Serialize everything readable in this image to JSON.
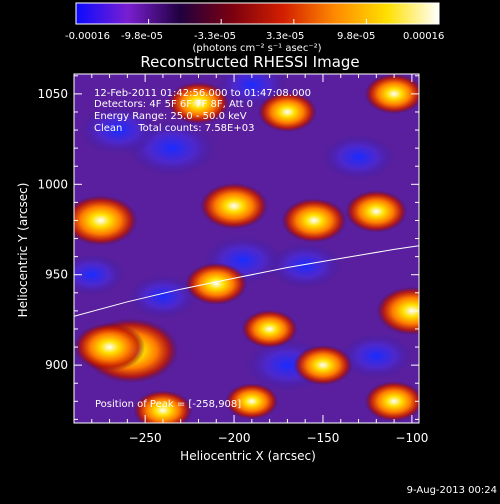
{
  "colorbar": {
    "tick_labels": [
      "-0.00016",
      "-9.8e-05",
      "-3.3e-05",
      "3.3e-05",
      "9.8e-05",
      "0.00016"
    ],
    "unit_label": "(photons cm⁻² s⁻¹ asec⁻²)",
    "range": [
      -0.00016,
      0.00016
    ],
    "colors": [
      "#0a0aff",
      "#7a1fd0",
      "#200040",
      "#7a0010",
      "#d31f00",
      "#ff8a00",
      "#ffe000",
      "#ffffff"
    ]
  },
  "chart_data": {
    "type": "heatmap",
    "title": "Reconstructed RHESSI Image",
    "xlabel": "Heliocentric X (arcsec)",
    "ylabel": "Heliocentric Y (arcsec)",
    "xlim": [
      -290,
      -96
    ],
    "ylim": [
      868,
      1061
    ],
    "x_ticks": [
      -250,
      -200,
      -150,
      -100
    ],
    "y_ticks": [
      900,
      950,
      1000,
      1050
    ],
    "x_tick_labels": [
      "−250",
      "−200",
      "−150",
      "−100"
    ],
    "y_tick_labels": [
      "900",
      "950",
      "1000",
      "1050"
    ],
    "annotations": [
      "12-Feb-2011 01:42:56.000 to 01:47:08.000",
      "Detectors: 4F 5F 6F 7F 8F, Att 0",
      "Energy Range: 25.0 - 50.0 keV",
      "Clean     Total counts: 7.58E+03"
    ],
    "peak_label": "Position of Peak = [-258,908]",
    "peak": [
      -258,
      908
    ],
    "limb_curve": [
      [
        -290,
        927
      ],
      [
        -260,
        935
      ],
      [
        -230,
        942
      ],
      [
        -200,
        948
      ],
      [
        -170,
        954
      ],
      [
        -140,
        959
      ],
      [
        -110,
        964
      ],
      [
        -96,
        966
      ]
    ],
    "hot_spots": [
      {
        "x": -258,
        "y": 908,
        "level": 1.0
      },
      {
        "x": -275,
        "y": 980,
        "level": 0.65
      },
      {
        "x": -270,
        "y": 910,
        "level": 0.6
      },
      {
        "x": -200,
        "y": 988,
        "level": 0.55
      },
      {
        "x": -100,
        "y": 930,
        "level": 0.6
      },
      {
        "x": -210,
        "y": 945,
        "level": 0.45
      },
      {
        "x": -155,
        "y": 980,
        "level": 0.5
      },
      {
        "x": -220,
        "y": 1045,
        "level": 0.45
      },
      {
        "x": -170,
        "y": 1040,
        "level": 0.4
      },
      {
        "x": -110,
        "y": 1050,
        "level": 0.4
      },
      {
        "x": -120,
        "y": 985,
        "level": 0.45
      },
      {
        "x": -150,
        "y": 900,
        "level": 0.4
      },
      {
        "x": -240,
        "y": 875,
        "level": 0.4
      },
      {
        "x": -110,
        "y": 880,
        "level": 0.4
      },
      {
        "x": -180,
        "y": 920,
        "level": 0.35
      },
      {
        "x": -190,
        "y": 880,
        "level": 0.3
      }
    ],
    "cold_spots": [
      {
        "x": -235,
        "y": 1020,
        "level": -0.7
      },
      {
        "x": -265,
        "y": 1030,
        "level": -0.5
      },
      {
        "x": -170,
        "y": 900,
        "level": -0.6
      },
      {
        "x": -195,
        "y": 958,
        "level": -0.5
      },
      {
        "x": -160,
        "y": 955,
        "level": -0.4
      },
      {
        "x": -130,
        "y": 1015,
        "level": -0.4
      },
      {
        "x": -240,
        "y": 938,
        "level": -0.35
      },
      {
        "x": -120,
        "y": 905,
        "level": -0.4
      },
      {
        "x": -190,
        "y": 1055,
        "level": -0.35
      },
      {
        "x": -280,
        "y": 950,
        "level": -0.3
      }
    ]
  },
  "footer": {
    "date": "9-Aug-2013 00:24"
  }
}
